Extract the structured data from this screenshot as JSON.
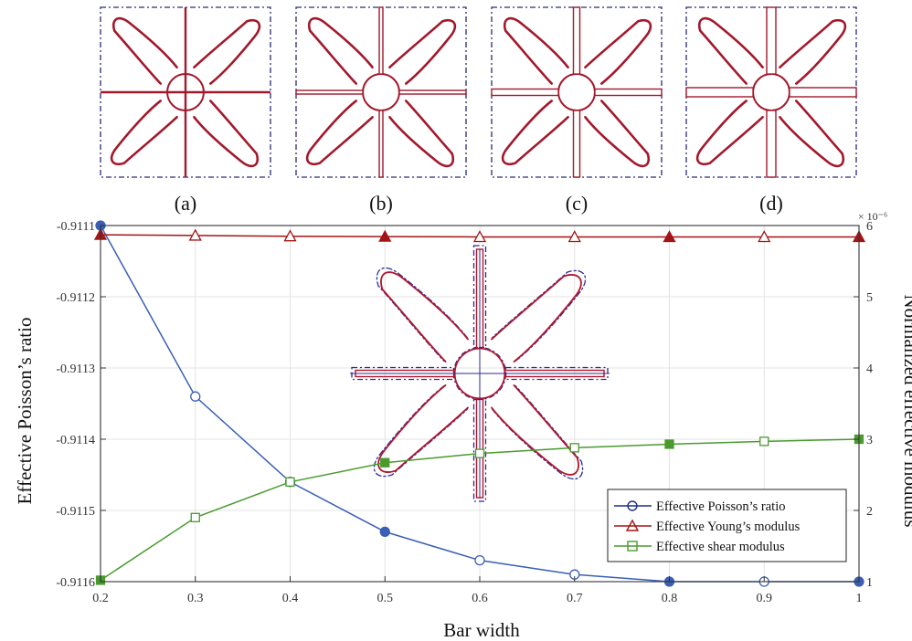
{
  "panels": [
    {
      "label": "(a)"
    },
    {
      "label": "(b)"
    },
    {
      "label": "(c)"
    },
    {
      "label": "(d)"
    }
  ],
  "chart_data": {
    "type": "line",
    "xlabel": "Bar width",
    "ylabel_left": "Effective Poisson’s ratio",
    "ylabel_right": "Normalized effective modulus",
    "right_axis_multiplier": "× 10⁻⁶",
    "x": [
      0.2,
      0.3,
      0.4,
      0.5,
      0.6,
      0.7,
      0.8,
      0.9,
      1.0
    ],
    "xlim": [
      0.2,
      1.0
    ],
    "xticks": [
      "0.2",
      "0.3",
      "0.4",
      "0.5",
      "0.6",
      "0.7",
      "0.8",
      "0.9",
      "1"
    ],
    "ylim_left": [
      -0.9116,
      -0.9111
    ],
    "yticks_left": [
      "-0.9111",
      "-0.9112",
      "-0.9113",
      "-0.9114",
      "-0.9115",
      "-0.9116"
    ],
    "ylim_right": [
      1,
      6
    ],
    "yticks_right": [
      "6",
      "5",
      "4",
      "3",
      "2",
      "1"
    ],
    "grid": true,
    "legend_position": "bottom-right",
    "series": [
      {
        "name": "Effective Poisson’s ratio",
        "axis": "left",
        "marker": "circle",
        "color": "#3a5fb5",
        "values": [
          -0.9111,
          -0.91134,
          -0.91146,
          -0.91153,
          -0.91157,
          -0.91159,
          -0.9116,
          -0.9116,
          -0.9116
        ],
        "filled": [
          true,
          false,
          false,
          true,
          false,
          false,
          true,
          false,
          true
        ]
      },
      {
        "name": "Effective Young’s modulus",
        "axis": "right",
        "marker": "triangle",
        "color": "#a31515",
        "values": [
          5.87,
          5.86,
          5.85,
          5.845,
          5.84,
          5.84,
          5.84,
          5.84,
          5.84
        ],
        "filled": [
          true,
          false,
          false,
          true,
          false,
          false,
          true,
          false,
          true
        ]
      },
      {
        "name": "Effective shear modulus",
        "axis": "right",
        "marker": "square",
        "color": "#4a9a2e",
        "values": [
          1.02,
          1.9,
          2.4,
          2.67,
          2.8,
          2.88,
          2.93,
          2.97,
          3.0
        ],
        "filled": [
          true,
          false,
          false,
          true,
          false,
          false,
          true,
          false,
          true
        ]
      }
    ]
  }
}
